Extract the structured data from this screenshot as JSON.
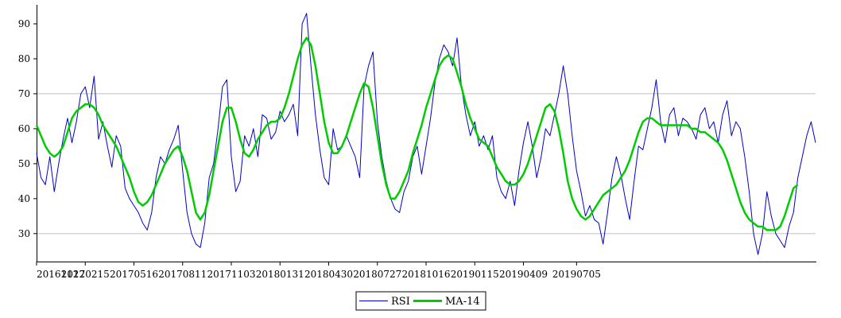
{
  "chart_data": {
    "type": "line",
    "title": "",
    "xlabel": "",
    "ylabel": "",
    "ylim": [
      22,
      95
    ],
    "yticks": [
      30,
      40,
      50,
      60,
      70,
      80,
      90
    ],
    "grid": "horizontal at 30 and 70",
    "x_tick_labels": [
      "20161122",
      "20170215",
      "20170516",
      "20170811",
      "20171103",
      "20180131",
      "20180430",
      "20180727",
      "20181016",
      "20190115",
      "20190409",
      "20190705"
    ],
    "x_tick_index": [
      0,
      11,
      22,
      33,
      44,
      55,
      66,
      77,
      88,
      99,
      110,
      122
    ],
    "legend_position": "bottom-center",
    "series": [
      {
        "name": "RSI",
        "color": "#0000cc",
        "values": [
          53,
          46,
          44,
          52,
          42,
          50,
          57,
          63,
          56,
          62,
          70,
          72,
          66,
          75,
          57,
          62,
          55,
          49,
          58,
          55,
          43,
          40,
          38,
          36,
          33,
          31,
          36,
          46,
          52,
          50,
          54,
          57,
          61,
          48,
          36,
          30,
          27,
          26,
          33,
          46,
          50,
          60,
          72,
          74,
          52,
          42,
          45,
          58,
          55,
          60,
          52,
          64,
          63,
          57,
          59,
          65,
          62,
          64,
          67,
          58,
          90,
          93,
          78,
          64,
          54,
          46,
          44,
          60,
          54,
          55,
          58,
          55,
          52,
          46,
          72,
          78,
          82,
          62,
          52,
          45,
          40,
          37,
          36,
          42,
          45,
          52,
          55,
          47,
          55,
          63,
          73,
          80,
          84,
          82,
          78,
          86,
          72,
          64,
          58,
          62,
          55,
          58,
          54,
          58,
          46,
          42,
          40,
          45,
          38,
          48,
          56,
          62,
          55,
          46,
          52,
          60,
          58,
          64,
          70,
          78,
          70,
          58,
          48,
          42,
          35,
          38,
          34,
          33,
          27,
          36,
          46,
          52,
          47,
          40,
          34,
          45,
          55,
          54,
          60,
          66,
          74,
          62,
          56,
          64,
          66,
          58,
          63,
          62,
          60,
          57,
          64,
          66,
          60,
          62,
          56,
          64,
          68,
          58,
          62,
          60,
          52,
          42,
          30,
          24,
          30,
          42,
          35,
          30,
          28,
          26,
          32,
          36,
          46,
          52,
          58,
          62,
          56
        ]
      },
      {
        "name": "MA-14",
        "color": "#00cc00",
        "values": [
          61,
          58,
          55,
          53,
          52,
          53,
          55,
          59,
          63,
          65,
          66,
          67,
          67,
          66,
          64,
          61,
          59,
          57,
          55,
          52,
          49,
          46,
          42,
          39,
          38,
          39,
          41,
          44,
          47,
          50,
          52,
          54,
          55,
          52,
          48,
          42,
          36,
          34,
          36,
          41,
          48,
          55,
          62,
          66,
          66,
          62,
          57,
          53,
          52,
          54,
          57,
          59,
          61,
          62,
          62,
          63,
          66,
          70,
          75,
          80,
          84,
          86,
          84,
          78,
          70,
          62,
          56,
          53,
          53,
          55,
          58,
          62,
          66,
          70,
          73,
          72,
          66,
          58,
          50,
          44,
          40,
          40,
          42,
          45,
          48,
          53,
          57,
          61,
          66,
          70,
          74,
          78,
          80,
          81,
          80,
          76,
          72,
          67,
          63,
          60,
          57,
          56,
          55,
          52,
          49,
          47,
          45,
          44,
          44,
          45,
          47,
          50,
          54,
          58,
          62,
          66,
          67,
          65,
          60,
          53,
          45,
          40,
          37,
          35,
          34,
          35,
          37,
          39,
          41,
          42,
          43,
          44,
          46,
          48,
          51,
          55,
          59,
          62,
          63,
          63,
          62,
          61,
          61,
          61,
          61,
          61,
          61,
          61,
          60,
          60,
          59,
          59,
          58,
          57,
          56,
          54,
          51,
          47,
          43,
          39,
          36,
          34,
          33,
          32,
          32,
          31,
          31,
          31,
          32,
          35,
          39,
          43,
          44
        ]
      }
    ]
  }
}
